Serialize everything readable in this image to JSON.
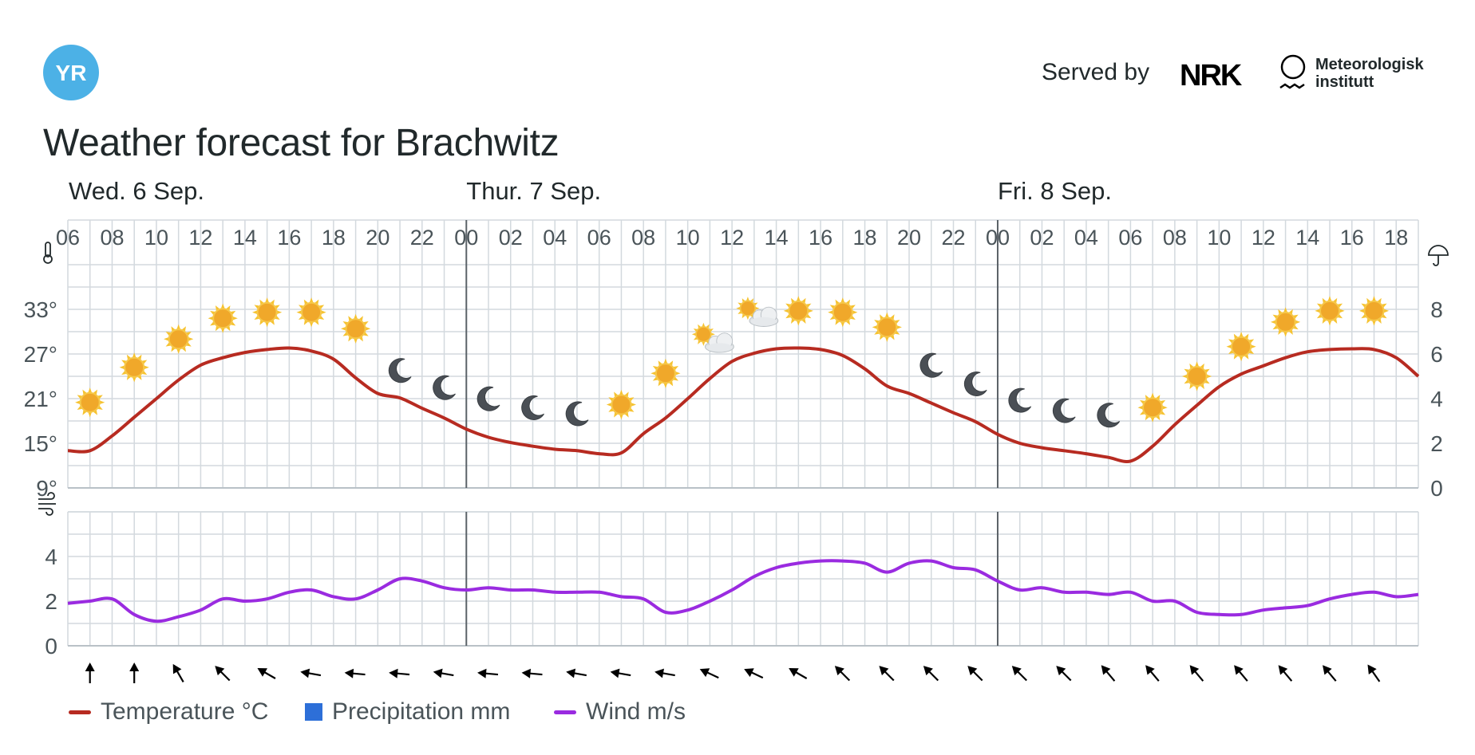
{
  "brand": {
    "logo_text": "YR",
    "served_by": "Served by",
    "nrk_label": "NRK",
    "met_line1": "Meteorologisk",
    "met_line2": "institutt",
    "logo_color": "#4cb1e6"
  },
  "title": "Weather forecast for Brachwitz",
  "legend": {
    "temperature": "Temperature °C",
    "precipitation": "Precipitation mm",
    "wind": "Wind m/s"
  },
  "colors": {
    "temperature": "#b72b21",
    "precipitation": "#2d6fd8",
    "wind": "#9a2be0",
    "grid": "#d3d9de",
    "day_divider": "#5b6268"
  },
  "chart_data": [
    {
      "type": "line",
      "title": "",
      "days": [
        {
          "label": "Wed. 6 Sep.",
          "start": 0
        },
        {
          "label": "Thur. 7 Sep.",
          "start": 18
        },
        {
          "label": "Fri. 8 Sep.",
          "start": 42
        }
      ],
      "x_tick_labels": [
        "06",
        "08",
        "10",
        "12",
        "14",
        "16",
        "18",
        "20",
        "22",
        "00",
        "02",
        "04",
        "06",
        "08",
        "10",
        "12",
        "14",
        "16",
        "18",
        "20",
        "22",
        "00",
        "02",
        "04",
        "06",
        "08",
        "10",
        "12",
        "14",
        "16",
        "18"
      ],
      "x_label_units": "hours after Wed 06:00",
      "x_range": [
        0,
        61
      ],
      "y_left": {
        "icon": "thermometer-icon",
        "ticks": [
          "33°",
          "27°",
          "21°",
          "15°",
          "9°"
        ],
        "range": [
          9,
          39
        ],
        "unit": "°C"
      },
      "y_right": {
        "icon": "umbrella-icon",
        "ticks": [
          "8",
          "6",
          "4",
          "2",
          "0"
        ],
        "range": [
          0,
          10
        ],
        "unit": "mm"
      },
      "series": [
        {
          "name": "Temperature °C",
          "x": [
            0,
            1,
            2,
            3,
            4,
            5,
            6,
            7,
            8,
            9,
            10,
            11,
            12,
            13,
            14,
            15,
            16,
            17,
            18,
            19,
            20,
            21,
            22,
            23,
            24,
            25,
            26,
            27,
            28,
            29,
            30,
            31,
            32,
            33,
            34,
            35,
            36,
            37,
            38,
            39,
            40,
            41,
            42,
            43,
            44,
            45,
            46,
            47,
            48,
            49,
            50,
            51,
            52,
            53,
            54,
            55,
            56,
            57,
            58,
            59,
            60,
            61
          ],
          "values": [
            14.0,
            14.0,
            16.0,
            18.5,
            21.0,
            23.5,
            25.5,
            26.5,
            27.2,
            27.6,
            27.8,
            27.4,
            26.3,
            23.8,
            21.7,
            21.1,
            19.7,
            18.4,
            16.9,
            15.8,
            15.1,
            14.6,
            14.2,
            14.0,
            13.6,
            13.7,
            16.3,
            18.4,
            21.0,
            23.7,
            26.0,
            27.1,
            27.7,
            27.8,
            27.6,
            26.8,
            25.0,
            22.7,
            21.7,
            20.4,
            19.1,
            17.9,
            16.2,
            15.0,
            14.4,
            14.0,
            13.6,
            13.1,
            12.6,
            14.6,
            17.5,
            20.1,
            22.6,
            24.3,
            25.4,
            26.5,
            27.3,
            27.6,
            27.7,
            27.6,
            26.5,
            24.0
          ]
        },
        {
          "name": "Precipitation mm",
          "values": []
        }
      ],
      "weather_symbols": [
        {
          "x": 1,
          "symbol": "clear-day-icon"
        },
        {
          "x": 3,
          "symbol": "clear-day-icon"
        },
        {
          "x": 5,
          "symbol": "clear-day-icon"
        },
        {
          "x": 7,
          "symbol": "clear-day-icon"
        },
        {
          "x": 9,
          "symbol": "clear-day-icon"
        },
        {
          "x": 11,
          "symbol": "clear-day-icon"
        },
        {
          "x": 13,
          "symbol": "clear-day-icon"
        },
        {
          "x": 15,
          "symbol": "moon-icon"
        },
        {
          "x": 17,
          "symbol": "moon-icon"
        },
        {
          "x": 19,
          "symbol": "moon-icon"
        },
        {
          "x": 21,
          "symbol": "moon-icon"
        },
        {
          "x": 23,
          "symbol": "moon-icon"
        },
        {
          "x": 25,
          "symbol": "clear-day-icon"
        },
        {
          "x": 27,
          "symbol": "clear-day-icon"
        },
        {
          "x": 29,
          "symbol": "partly-cloudy-day-icon"
        },
        {
          "x": 31,
          "symbol": "partly-cloudy-day-icon"
        },
        {
          "x": 33,
          "symbol": "clear-day-icon"
        },
        {
          "x": 35,
          "symbol": "clear-day-icon"
        },
        {
          "x": 37,
          "symbol": "clear-day-icon"
        },
        {
          "x": 39,
          "symbol": "moon-icon"
        },
        {
          "x": 41,
          "symbol": "moon-icon"
        },
        {
          "x": 43,
          "symbol": "moon-icon"
        },
        {
          "x": 45,
          "symbol": "moon-icon"
        },
        {
          "x": 47,
          "symbol": "moon-icon"
        },
        {
          "x": 49,
          "symbol": "clear-day-icon"
        },
        {
          "x": 51,
          "symbol": "clear-day-icon"
        },
        {
          "x": 53,
          "symbol": "clear-day-icon"
        },
        {
          "x": 55,
          "symbol": "clear-day-icon"
        },
        {
          "x": 57,
          "symbol": "clear-day-icon"
        },
        {
          "x": 59,
          "symbol": "clear-day-icon"
        }
      ],
      "symbol_temperatures": [
        20.5,
        25.2,
        29.0,
        31.8,
        32.6,
        32.6,
        30.4,
        24.8,
        22.5,
        21.0,
        19.8,
        19.0,
        20.2,
        24.4,
        29.0,
        32.5,
        32.8,
        32.6,
        30.6,
        25.5,
        23.0,
        20.8,
        19.4,
        18.8,
        19.8,
        24.0,
        28.0,
        31.3,
        32.8,
        32.8
      ],
      "grid": true,
      "legend_placement": "bottom-left"
    },
    {
      "type": "line",
      "title": "",
      "y_left": {
        "icon": "wind-icon",
        "ticks": [
          "4",
          "2",
          "0"
        ],
        "range": [
          0,
          6
        ],
        "unit": "m/s"
      },
      "x_range": [
        0,
        61
      ],
      "series": [
        {
          "name": "Wind m/s",
          "x": [
            0,
            1,
            2,
            3,
            4,
            5,
            6,
            7,
            8,
            9,
            10,
            11,
            12,
            13,
            14,
            15,
            16,
            17,
            18,
            19,
            20,
            21,
            22,
            23,
            24,
            25,
            26,
            27,
            28,
            29,
            30,
            31,
            32,
            33,
            34,
            35,
            36,
            37,
            38,
            39,
            40,
            41,
            42,
            43,
            44,
            45,
            46,
            47,
            48,
            49,
            50,
            51,
            52,
            53,
            54,
            55,
            56,
            57,
            58,
            59,
            60,
            61
          ],
          "values": [
            1.9,
            2.0,
            2.1,
            1.4,
            1.1,
            1.3,
            1.6,
            2.1,
            2.0,
            2.1,
            2.4,
            2.5,
            2.2,
            2.1,
            2.5,
            3.0,
            2.9,
            2.6,
            2.5,
            2.6,
            2.5,
            2.5,
            2.4,
            2.4,
            2.4,
            2.2,
            2.1,
            1.5,
            1.6,
            2.0,
            2.5,
            3.1,
            3.5,
            3.7,
            3.8,
            3.8,
            3.7,
            3.3,
            3.7,
            3.8,
            3.5,
            3.4,
            2.9,
            2.5,
            2.6,
            2.4,
            2.4,
            2.3,
            2.4,
            2.0,
            2.0,
            1.5,
            1.4,
            1.4,
            1.6,
            1.7,
            1.8,
            2.1,
            2.3,
            2.4,
            2.2,
            2.3
          ]
        }
      ],
      "wind_directions_deg": [
        180,
        180,
        150,
        135,
        120,
        100,
        95,
        95,
        100,
        95,
        95,
        100,
        100,
        100,
        115,
        115,
        120,
        135,
        135,
        135,
        135,
        135,
        135,
        140,
        140,
        140,
        140,
        140,
        140,
        145
      ],
      "grid": true
    }
  ]
}
